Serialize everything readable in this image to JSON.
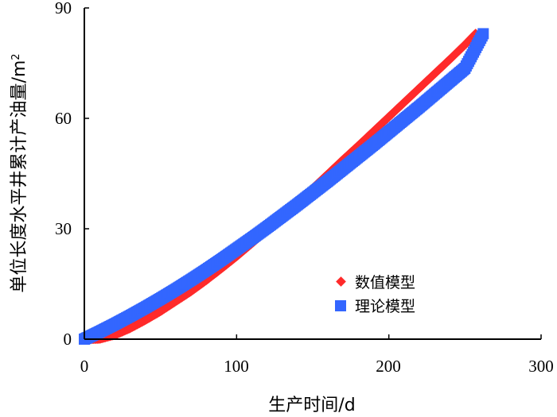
{
  "chart_data": {
    "type": "scatter",
    "xlabel": "生产时间/d",
    "ylabel": "单位长度水平井累计产油量/m",
    "ylabel_sup": "2",
    "xlim": [
      0,
      300
    ],
    "ylim": [
      0,
      90
    ],
    "xticks": [
      "0",
      "100",
      "200",
      "300"
    ],
    "yticks": [
      "0",
      "30",
      "60",
      "90"
    ],
    "grid": false,
    "legend_position": "lower-right",
    "series": [
      {
        "name": "数值模型",
        "marker": "diamond",
        "color": "#ff2a2a",
        "points": [
          [
            0,
            0
          ],
          [
            10,
            0.1
          ],
          [
            20,
            1.2
          ],
          [
            30,
            3.0
          ],
          [
            40,
            5.2
          ],
          [
            50,
            7.6
          ],
          [
            60,
            10.3
          ],
          [
            70,
            13.0
          ],
          [
            80,
            16.0
          ],
          [
            90,
            19.2
          ],
          [
            100,
            22.5
          ],
          [
            110,
            26.0
          ],
          [
            120,
            29.6
          ],
          [
            130,
            33.3
          ],
          [
            140,
            37.1
          ],
          [
            150,
            41.0
          ],
          [
            160,
            44.9
          ],
          [
            170,
            48.8
          ],
          [
            180,
            52.6
          ],
          [
            190,
            56.5
          ],
          [
            200,
            60.4
          ],
          [
            210,
            64.3
          ],
          [
            220,
            68.2
          ],
          [
            230,
            72.1
          ],
          [
            240,
            76.0
          ],
          [
            250,
            80.0
          ],
          [
            257,
            83.0
          ]
        ]
      },
      {
        "name": "理论模型",
        "marker": "square",
        "color": "#3366ff",
        "points": [
          [
            0,
            0
          ],
          [
            10,
            2.0
          ],
          [
            20,
            4.1
          ],
          [
            30,
            6.3
          ],
          [
            40,
            8.6
          ],
          [
            50,
            11.0
          ],
          [
            60,
            13.5
          ],
          [
            70,
            16.1
          ],
          [
            80,
            18.8
          ],
          [
            90,
            21.6
          ],
          [
            100,
            24.5
          ],
          [
            110,
            27.4
          ],
          [
            120,
            30.4
          ],
          [
            130,
            33.5
          ],
          [
            140,
            36.6
          ],
          [
            150,
            39.8
          ],
          [
            160,
            43.0
          ],
          [
            170,
            46.3
          ],
          [
            180,
            49.6
          ],
          [
            190,
            52.9
          ],
          [
            200,
            56.3
          ],
          [
            210,
            59.7
          ],
          [
            220,
            63.1
          ],
          [
            230,
            66.6
          ],
          [
            240,
            70.1
          ],
          [
            250,
            73.6
          ],
          [
            262,
            83.0
          ]
        ]
      }
    ]
  }
}
